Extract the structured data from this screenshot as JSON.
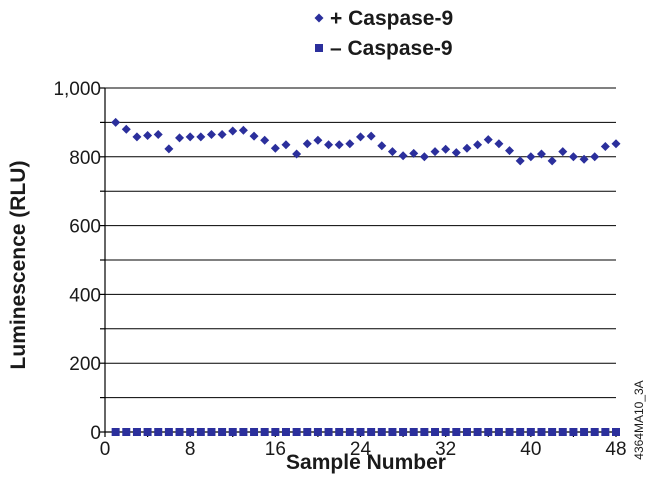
{
  "chart_data": {
    "type": "scatter",
    "title": "",
    "xlabel": "Sample Number",
    "ylabel": "Luminescence (RLU)",
    "xlim": [
      0,
      48
    ],
    "ylim": [
      0,
      1000
    ],
    "x_ticks": [
      "0",
      "8",
      "16",
      "24",
      "32",
      "40",
      "48"
    ],
    "y_ticks": [
      "0",
      "200",
      "400",
      "600",
      "800",
      "1,000"
    ],
    "grid": "horizontal",
    "legend_position": "top-center",
    "series": [
      {
        "name": "+ Caspase-9",
        "marker": "diamond",
        "color": "#2b2f9c",
        "x": [
          1,
          2,
          3,
          4,
          5,
          6,
          7,
          8,
          9,
          10,
          11,
          12,
          13,
          14,
          15,
          16,
          17,
          18,
          19,
          20,
          21,
          22,
          23,
          24,
          25,
          26,
          27,
          28,
          29,
          30,
          31,
          32,
          33,
          34,
          35,
          36,
          37,
          38,
          39,
          40,
          41,
          42,
          43,
          44,
          45,
          46,
          47,
          48
        ],
        "values": [
          900,
          880,
          858,
          862,
          865,
          823,
          855,
          858,
          858,
          865,
          865,
          875,
          877,
          860,
          848,
          825,
          835,
          808,
          838,
          848,
          835,
          835,
          838,
          858,
          860,
          832,
          815,
          803,
          810,
          800,
          815,
          822,
          812,
          825,
          835,
          850,
          838,
          818,
          788,
          800,
          808,
          788,
          815,
          800,
          793,
          800,
          830,
          838
        ]
      },
      {
        "name": "– Caspase-9",
        "marker": "square",
        "color": "#2b2f9c",
        "x": [
          1,
          2,
          3,
          4,
          5,
          6,
          7,
          8,
          9,
          10,
          11,
          12,
          13,
          14,
          15,
          16,
          17,
          18,
          19,
          20,
          21,
          22,
          23,
          24,
          25,
          26,
          27,
          28,
          29,
          30,
          31,
          32,
          33,
          34,
          35,
          36,
          37,
          38,
          39,
          40,
          41,
          42,
          43,
          44,
          45,
          46,
          47,
          48
        ],
        "values": [
          0,
          0,
          0,
          0,
          0,
          0,
          0,
          0,
          0,
          0,
          0,
          0,
          0,
          0,
          0,
          0,
          0,
          0,
          0,
          0,
          0,
          0,
          0,
          0,
          0,
          0,
          0,
          0,
          0,
          0,
          0,
          0,
          0,
          0,
          0,
          0,
          0,
          0,
          0,
          0,
          0,
          0,
          0,
          0,
          0,
          0,
          0,
          0
        ]
      }
    ]
  },
  "figure_code": "4364MA10_3A"
}
